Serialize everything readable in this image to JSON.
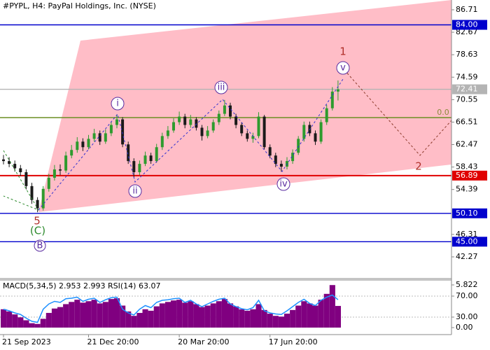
{
  "chart_data": [
    {
      "type": "candlestick",
      "title": "#PYPL, H4:  PayPal Holdings, Inc. (NYSE)",
      "categories": [
        "21 Sep 2023",
        null,
        null,
        null,
        null,
        null,
        null,
        null,
        null,
        null,
        null,
        null,
        null,
        null,
        null,
        "21 Dec 20:00",
        null,
        null,
        null,
        null,
        null,
        null,
        null,
        null,
        null,
        null,
        null,
        null,
        null,
        null,
        null,
        "20 Mar 20:00",
        null,
        null,
        null,
        null,
        null,
        null,
        null,
        null,
        null,
        null,
        null,
        null,
        null,
        null,
        null,
        "17 Jun 20:00",
        null,
        null,
        null,
        null,
        null,
        null,
        null,
        null,
        null,
        null,
        null,
        null
      ],
      "open": [
        59.8,
        59.5,
        59.0,
        58.2,
        57.5,
        55.0,
        52.5,
        51.0,
        54.5,
        56.5,
        58.0,
        57.8,
        60.5,
        61.5,
        63.0,
        62.0,
        63.5,
        64.5,
        63.0,
        64.5,
        66.0,
        67.0,
        62.5,
        59.5,
        57.5,
        59.0,
        60.5,
        59.5,
        62.0,
        64.0,
        65.0,
        66.5,
        67.5,
        66.0,
        67.0,
        65.5,
        64.0,
        65.0,
        66.5,
        68.0,
        69.5,
        67.5,
        66.0,
        64.5,
        63.5,
        64.0,
        67.5,
        62.0,
        60.5,
        59.0,
        58.5,
        59.5,
        61.0,
        63.5,
        66.0,
        64.5,
        63.0,
        66.5,
        69.0,
        72.0
      ],
      "high": [
        60.6,
        60.2,
        59.6,
        58.8,
        58.0,
        55.6,
        53.0,
        55.0,
        57.2,
        58.8,
        58.9,
        61.2,
        62.4,
        63.8,
        63.6,
        64.2,
        65.3,
        65.0,
        65.2,
        66.6,
        67.9,
        67.4,
        63.0,
        60.0,
        59.6,
        61.2,
        61.0,
        62.6,
        64.6,
        65.8,
        67.2,
        68.4,
        68.0,
        67.8,
        67.4,
        66.0,
        65.8,
        67.0,
        68.6,
        70.5,
        70.0,
        68.0,
        66.5,
        65.0,
        64.6,
        68.3,
        67.8,
        62.5,
        61.0,
        59.6,
        60.2,
        61.6,
        64.0,
        66.6,
        66.6,
        65.0,
        67.0,
        69.6,
        72.8,
        74.0
      ],
      "low": [
        58.9,
        58.4,
        57.6,
        56.8,
        54.4,
        51.8,
        50.3,
        50.6,
        54.0,
        56.0,
        57.0,
        57.4,
        60.0,
        61.0,
        61.3,
        61.6,
        63.0,
        62.4,
        62.6,
        64.0,
        65.4,
        62.0,
        59.0,
        56.6,
        57.0,
        58.6,
        59.0,
        59.2,
        61.5,
        63.5,
        64.6,
        66.0,
        65.4,
        65.5,
        65.0,
        63.2,
        63.6,
        64.6,
        66.0,
        67.6,
        67.0,
        65.4,
        64.0,
        63.0,
        62.8,
        63.6,
        61.6,
        60.0,
        58.4,
        57.6,
        58.0,
        59.0,
        60.6,
        63.0,
        64.0,
        62.4,
        62.6,
        66.0,
        68.6,
        70.4
      ],
      "close": [
        59.5,
        59.0,
        58.2,
        57.5,
        55.0,
        52.5,
        51.0,
        54.5,
        56.5,
        58.0,
        57.8,
        60.5,
        61.5,
        63.0,
        62.0,
        63.5,
        64.5,
        63.0,
        64.5,
        66.0,
        67.0,
        62.5,
        59.5,
        57.5,
        59.0,
        60.5,
        59.5,
        62.0,
        64.0,
        65.0,
        66.5,
        67.5,
        66.0,
        67.0,
        65.5,
        64.0,
        65.0,
        66.5,
        68.0,
        69.5,
        67.5,
        66.0,
        64.5,
        63.5,
        64.0,
        67.5,
        62.0,
        60.5,
        59.0,
        58.5,
        59.5,
        61.0,
        63.5,
        66.0,
        64.5,
        63.0,
        66.5,
        69.0,
        72.0,
        72.4
      ],
      "up_color": "#2e9b2e",
      "down_color": "#1a1a1a",
      "ylim": [
        38.49,
        88.47
      ],
      "yticks": [
        86.71,
        82.67,
        78.63,
        74.59,
        70.55,
        66.51,
        62.47,
        58.43,
        54.39,
        46.31,
        42.27
      ],
      "grid": false,
      "levels": [
        {
          "value": 84.0,
          "label": "84.00",
          "color": "#0000cd"
        },
        {
          "value": 72.41,
          "label": "72.41",
          "color": "#b4b4b4"
        },
        {
          "value": 67.32,
          "color": "#6b8e23"
        },
        {
          "value": 56.89,
          "label": "56.89",
          "color": "#e00000"
        },
        {
          "value": 50.1,
          "label": "50.10",
          "color": "#0000cd"
        },
        {
          "value": 45.0,
          "label": "45.00",
          "color": "#0000cd"
        }
      ],
      "annotations": [
        "i",
        "ii",
        "iii",
        "iv",
        "v",
        "1",
        "2",
        "5",
        "(C)",
        "B",
        "0.0"
      ]
    },
    {
      "type": "indicator",
      "title": "MACD(5,34,5) 2.953 2.993 RSI(14) 63.07",
      "series": [
        {
          "type": "bar",
          "color": "#800080",
          "values": [
            2.5,
            2.2,
            1.8,
            1.4,
            1.0,
            0.6,
            0.5,
            1.2,
            2.0,
            2.6,
            2.8,
            3.2,
            3.5,
            3.8,
            3.4,
            3.6,
            3.8,
            3.3,
            3.5,
            3.9,
            4.0,
            3.0,
            2.2,
            1.6,
            2.0,
            2.5,
            2.3,
            2.9,
            3.3,
            3.5,
            3.7,
            3.8,
            3.4,
            3.6,
            3.2,
            2.8,
            3.0,
            3.3,
            3.6,
            3.9,
            3.3,
            2.9,
            2.5,
            2.3,
            2.5,
            3.2,
            2.4,
            1.9,
            1.6,
            1.5,
            1.9,
            2.4,
            3.0,
            3.6,
            3.3,
            3.0,
            3.8,
            4.6,
            5.8,
            2.953
          ]
        },
        {
          "type": "line",
          "color": "#1e90ff",
          "axis": "y2",
          "values": [
            45,
            42,
            38,
            35,
            28,
            22,
            20,
            45,
            55,
            60,
            58,
            65,
            66,
            68,
            60,
            64,
            66,
            58,
            63,
            67,
            68,
            45,
            38,
            34,
            45,
            52,
            48,
            58,
            62,
            63,
            65,
            66,
            58,
            62,
            55,
            50,
            55,
            60,
            64,
            66,
            55,
            50,
            46,
            44,
            48,
            62,
            42,
            38,
            36,
            35,
            42,
            50,
            58,
            64,
            56,
            52,
            62,
            68,
            72,
            63.07
          ]
        }
      ],
      "ylim": [
        -0.86,
        6.49
      ],
      "yticks": [
        {
          "value": 5.822,
          "label": "5.822"
        },
        {
          "value": 0,
          "label": "0.00"
        }
      ],
      "y2lim": [
        -2,
        100.67
      ],
      "y2ticks": [
        {
          "value": 70,
          "label": "70.00"
        },
        {
          "value": 30,
          "label": "30.00"
        }
      ]
    }
  ]
}
